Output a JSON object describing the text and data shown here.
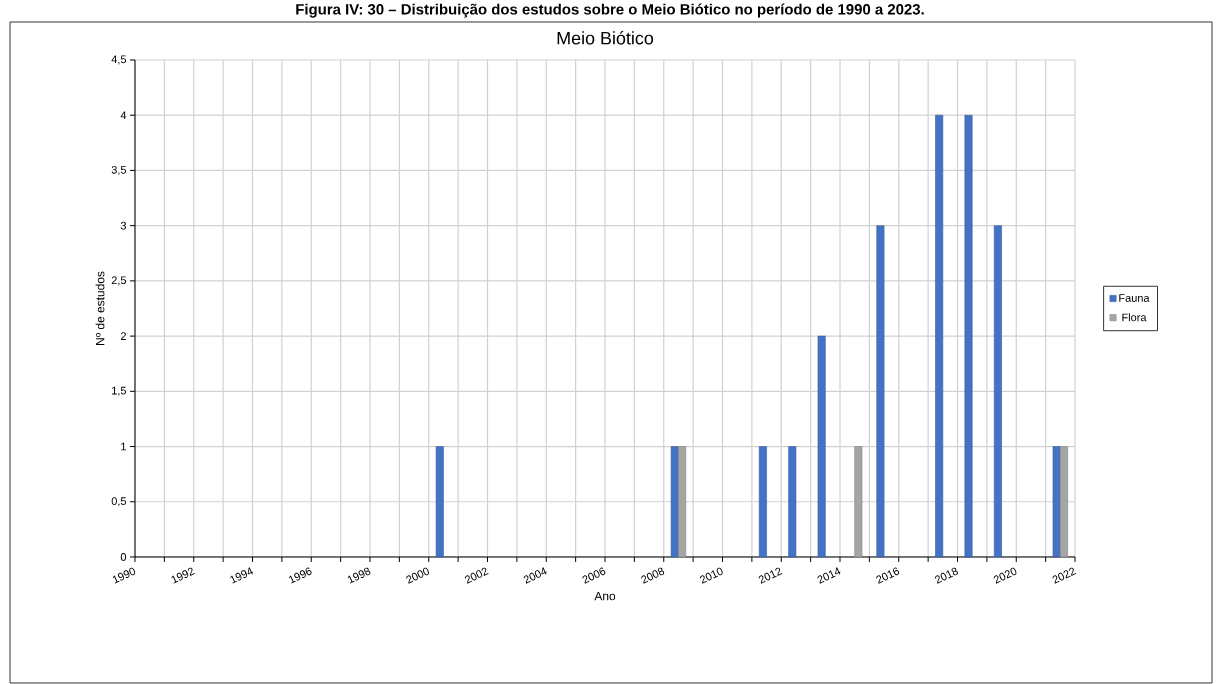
{
  "chart_data": {
    "type": "bar",
    "title": "Meio Biótico",
    "annotations": [
      "Figura IV: 30 – Distribuição dos estudos sobre o Meio Biótico no período de 1990 a 2023."
    ],
    "xlabel": "Ano",
    "ylabel": "Nº de estudos",
    "series": [
      {
        "name": "Fauna",
        "color": "#4472c4",
        "x": [
          2000,
          2008,
          2011,
          2012,
          2013,
          2015,
          2017,
          2018,
          2019,
          2021
        ],
        "values": [
          1,
          1,
          1,
          1,
          2,
          3,
          4,
          4,
          3,
          1
        ]
      },
      {
        "name": "Flora",
        "color": "#a5a5a5",
        "x": [
          2008,
          2014,
          2021
        ],
        "values": [
          1,
          1,
          1
        ]
      }
    ],
    "xlim": [
      1990,
      2022
    ],
    "xticks": [
      1990,
      {
        "value": 1991,
        "label": null
      },
      1992,
      {
        "value": 1993,
        "label": null
      },
      1994,
      {
        "value": 1995,
        "label": null
      },
      1996,
      {
        "value": 1997,
        "label": null
      },
      1998,
      {
        "value": 1999,
        "label": null
      },
      2000,
      {
        "value": 2001,
        "label": null
      },
      2002,
      {
        "value": 2003,
        "label": null
      },
      2004,
      {
        "value": 2005,
        "label": null
      },
      2006,
      {
        "value": 2007,
        "label": null
      },
      2008,
      {
        "value": 2009,
        "label": null
      },
      2010,
      {
        "value": 2011,
        "label": null
      },
      2012,
      {
        "value": 2013,
        "label": null
      },
      2014,
      {
        "value": 2015,
        "label": null
      },
      2016,
      {
        "value": 2017,
        "label": null
      },
      2018,
      {
        "value": 2019,
        "label": null
      },
      2020,
      {
        "value": 2021,
        "label": null
      },
      2022
    ],
    "ylim": [
      0,
      4.5
    ],
    "yticks": [
      0,
      {
        "value": 0.5,
        "label": "0,5"
      },
      1,
      {
        "value": 1.5,
        "label": "1,5"
      },
      2,
      {
        "value": 2.5,
        "label": "2,5"
      },
      3,
      {
        "value": 3.5,
        "label": "3,5"
      },
      4,
      {
        "value": 4.5,
        "label": "4,5"
      }
    ],
    "grid": true,
    "legend": "right"
  }
}
